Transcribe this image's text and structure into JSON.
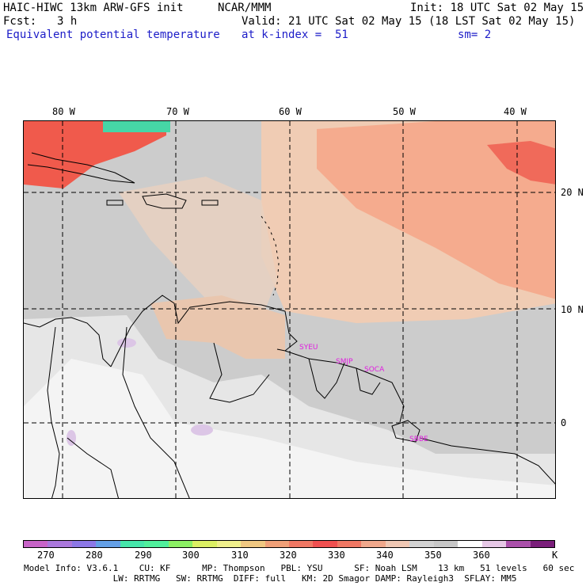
{
  "header": {
    "model": "HAIC-HIWC 13km ARW-GFS init",
    "center": "NCAR/MMM",
    "init": "Init: 18 UTC Sat 02 May 15",
    "fcst_label": "Fcst:",
    "fcst_value": "3 h",
    "valid": "Valid: 21 UTC Sat 02 May 15 (18 LST Sat 02 May 15)",
    "field": "Equivalent potential temperature",
    "level": "at k-index =  51",
    "smoothing": "sm= 2"
  },
  "map": {
    "lon_labels": [
      "80 W",
      "70 W",
      "60 W",
      "50 W",
      "40 W"
    ],
    "lat_labels": [
      "20 N",
      "10 N",
      "0"
    ],
    "stations": [
      "SYEU",
      "SMJP",
      "SOCA",
      "SBBE"
    ]
  },
  "colorbar": {
    "labels": [
      "270",
      "280",
      "290",
      "300",
      "310",
      "320",
      "330",
      "340",
      "350",
      "360",
      "K"
    ],
    "colors": [
      "#c864c8",
      "#aa78dc",
      "#8c78e6",
      "#64a0e6",
      "#46e6aa",
      "#50f09c",
      "#8cf064",
      "#dcf064",
      "#f0f08c",
      "#f0c882",
      "#f0a078",
      "#f07864",
      "#f05050",
      "#f07864",
      "#f0a88c",
      "#f0c8b4",
      "#d2d2d2",
      "#c8c8c8",
      "#ffffff",
      "#e6c8e6",
      "#aa50aa",
      "#7a1e7a"
    ]
  },
  "footer": {
    "line1": "Model Info: V3.6.1    CU: KF      MP: Thompson   PBL: YSU      SF: Noah LSM    13 km   51 levels   60 sec",
    "line2": "                 LW: RRTMG   SW: RRTMG  DIFF: full   KM: 2D Smagor DAMP: Rayleigh3  SFLAY: MM5"
  }
}
